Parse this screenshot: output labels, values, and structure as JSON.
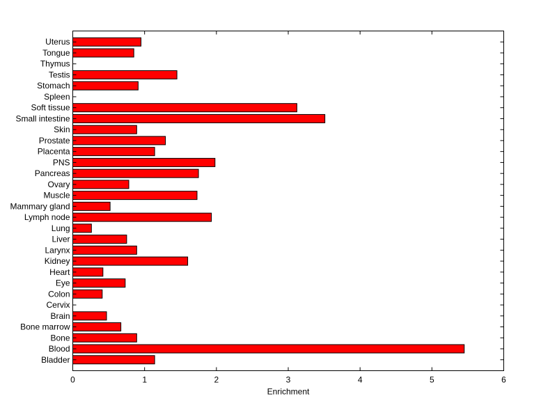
{
  "chart_data": {
    "type": "bar",
    "orientation": "horizontal",
    "xlabel": "Enrichment",
    "ylabel": "",
    "title": "",
    "xlim": [
      0,
      6
    ],
    "x_ticks": [
      "0",
      "1",
      "2",
      "3",
      "4",
      "5",
      "6"
    ],
    "grid": false,
    "bar_color": "#ff0000",
    "bar_edge_color": "#000000",
    "categories": [
      "Uterus",
      "Tongue",
      "Thymus",
      "Testis",
      "Stomach",
      "Spleen",
      "Soft tissue",
      "Small intestine",
      "Skin",
      "Prostate",
      "Placenta",
      "PNS",
      "Pancreas",
      "Ovary",
      "Muscle",
      "Mammary gland",
      "Lymph node",
      "Lung",
      "Liver",
      "Larynx",
      "Kidney",
      "Heart",
      "Eye",
      "Colon",
      "Cervix",
      "Brain",
      "Bone marrow",
      "Bone",
      "Blood",
      "Bladder"
    ],
    "values": [
      0.95,
      0.85,
      0,
      1.45,
      0.91,
      0,
      3.12,
      3.51,
      0.89,
      1.29,
      1.14,
      1.98,
      1.75,
      0.78,
      1.73,
      0.52,
      1.93,
      0.26,
      0.75,
      0.89,
      1.6,
      0.42,
      0.73,
      0.41,
      0,
      0.47,
      0.67,
      0.89,
      5.45,
      1.14
    ]
  }
}
